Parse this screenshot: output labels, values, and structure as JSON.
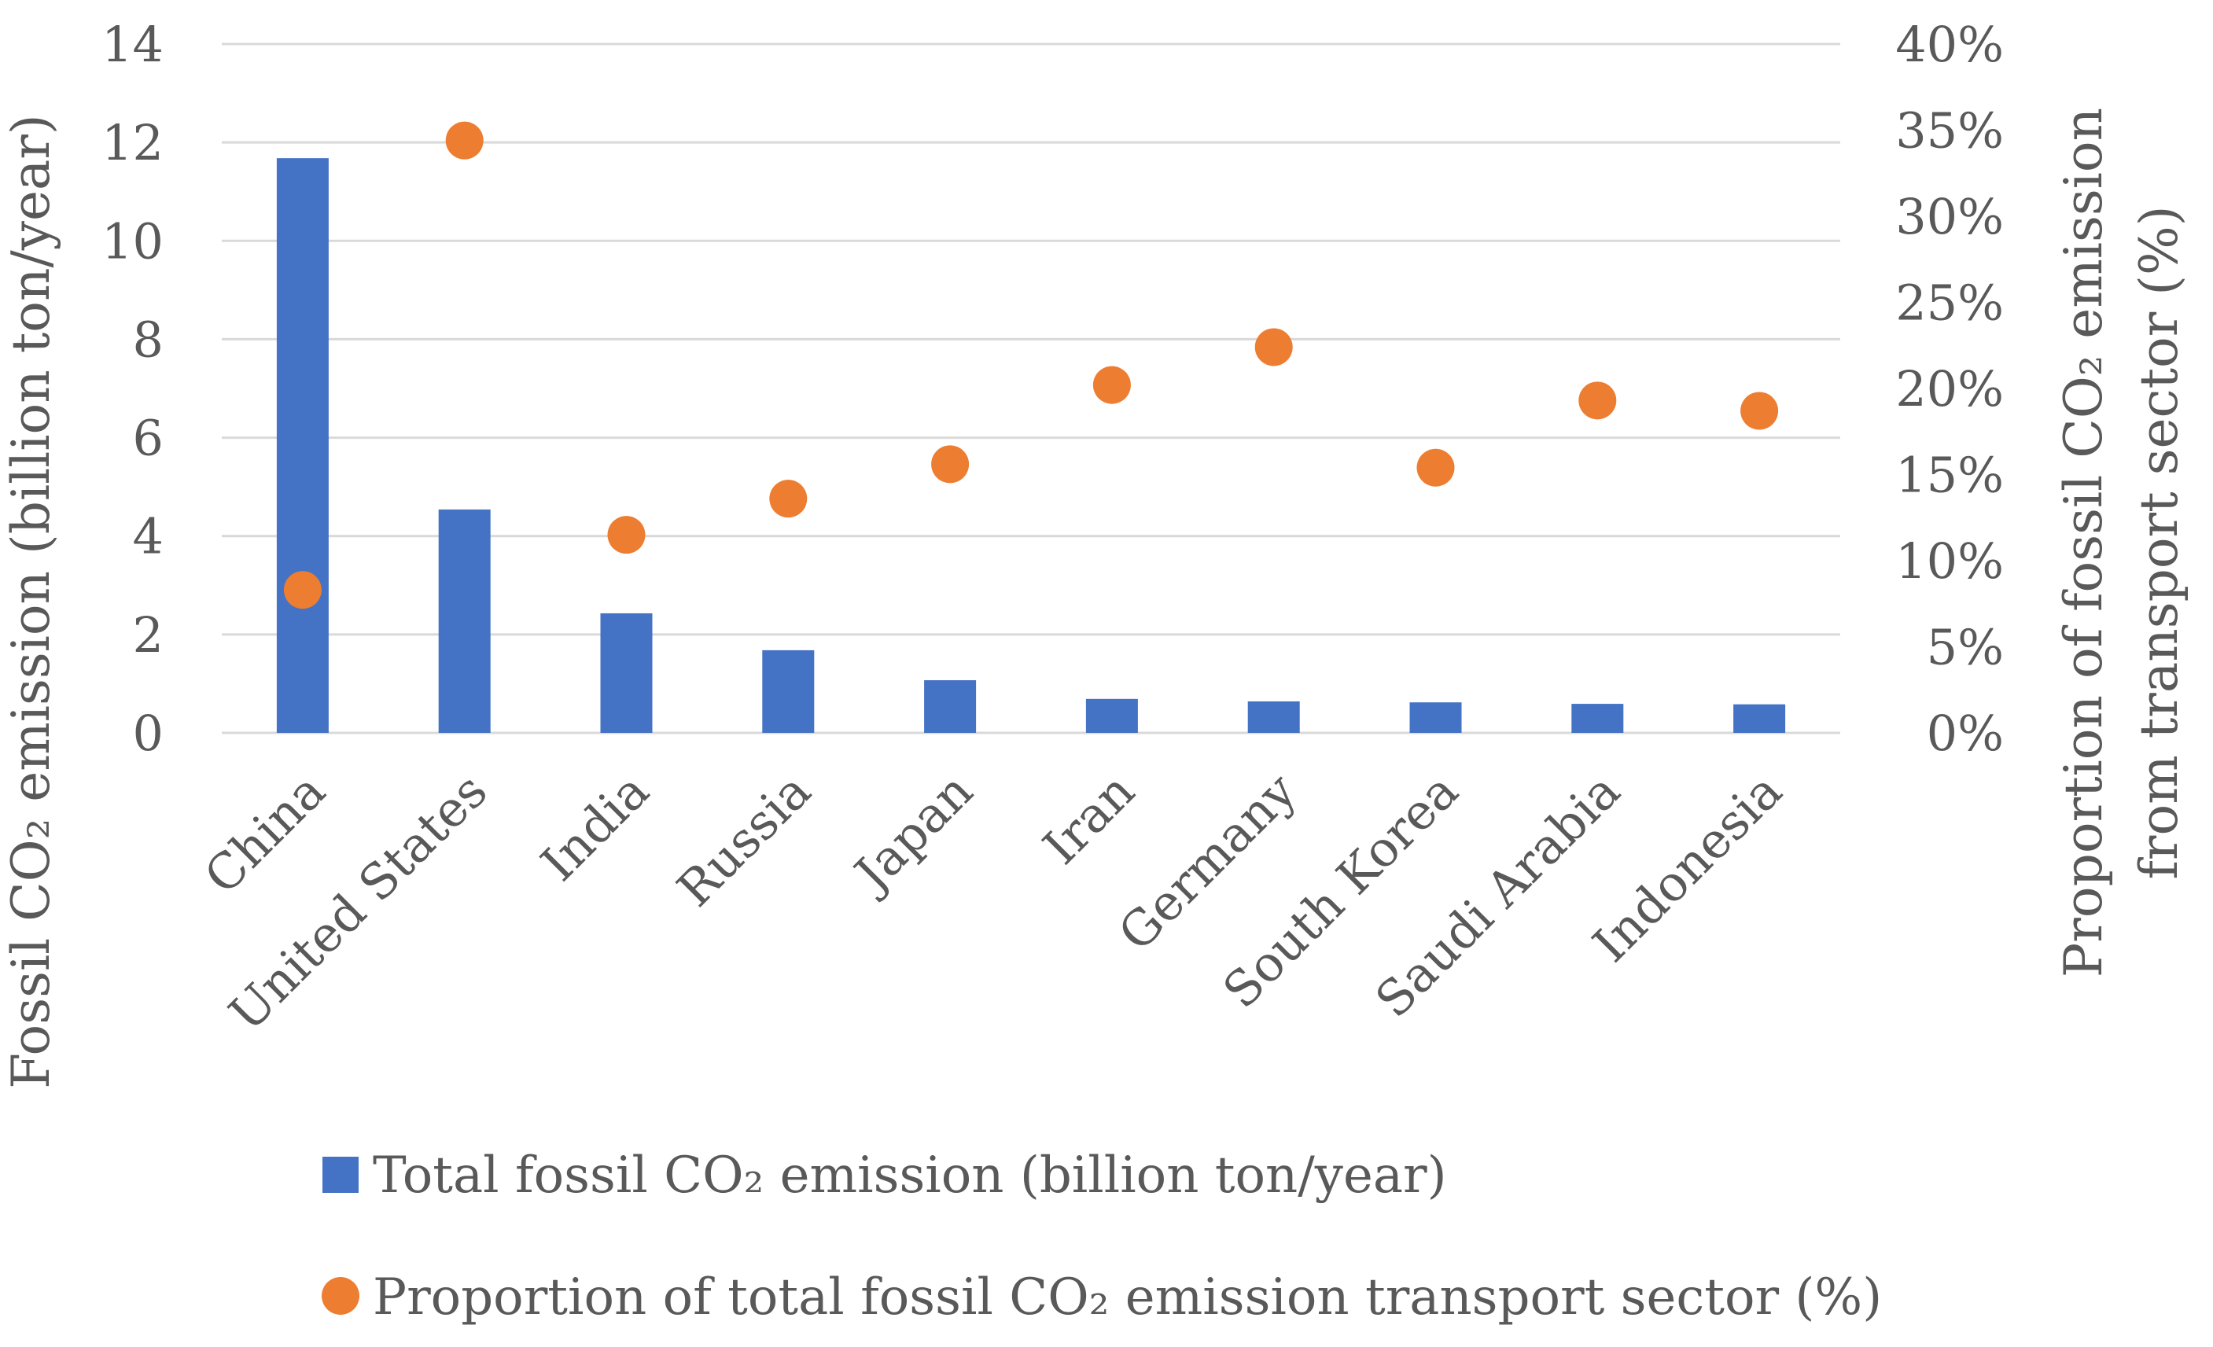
{
  "chart_data": {
    "type": "bar+scatter",
    "categories": [
      "China",
      "United States",
      "India",
      "Russia",
      "Japan",
      "Iran",
      "Germany",
      "South Korea",
      "Saudi Arabia",
      "Indonesia"
    ],
    "series": [
      {
        "name": "Total fossil CO₂ emission (billion ton/year)",
        "kind": "bar",
        "axis": "left",
        "color": "#4472C4",
        "values": [
          11.68,
          4.54,
          2.43,
          1.68,
          1.07,
          0.69,
          0.64,
          0.62,
          0.59,
          0.58
        ]
      },
      {
        "name": "Proportion of total fossil CO₂ emission transport sector (%)",
        "kind": "scatter",
        "axis": "right",
        "color": "#ED7D31",
        "values": [
          8.3,
          34.4,
          11.5,
          13.6,
          15.6,
          20.2,
          22.4,
          15.4,
          19.3,
          18.7
        ]
      }
    ],
    "y_left": {
      "title": "Fossil CO₂ emission (billion ton/year)",
      "min": 0,
      "max": 14,
      "ticks": [
        0,
        2,
        4,
        6,
        8,
        10,
        12,
        14
      ],
      "tick_labels": [
        "0",
        "2",
        "4",
        "6",
        "8",
        "10",
        "12",
        "14"
      ]
    },
    "y_right": {
      "title_line1": "Proportion of fossil CO₂ emission",
      "title_line2": "from transport sector (%)",
      "min": 0,
      "max": 40,
      "ticks": [
        0,
        5,
        10,
        15,
        20,
        25,
        30,
        35,
        40
      ],
      "tick_labels": [
        "0%",
        "5%",
        "10%",
        "15%",
        "20%",
        "25%",
        "30%",
        "35%",
        "40%"
      ]
    },
    "grid": true,
    "legend_position": "bottom"
  },
  "legend": {
    "items": [
      {
        "label": "Total fossil CO₂ emission (billion ton/year)",
        "marker": "square",
        "color": "#4472C4"
      },
      {
        "label": "Proportion of total fossil CO₂ emission transport sector (%)",
        "marker": "circle",
        "color": "#ED7D31"
      }
    ]
  },
  "colors": {
    "grid": "#D9D9D9",
    "text": "#595959"
  }
}
